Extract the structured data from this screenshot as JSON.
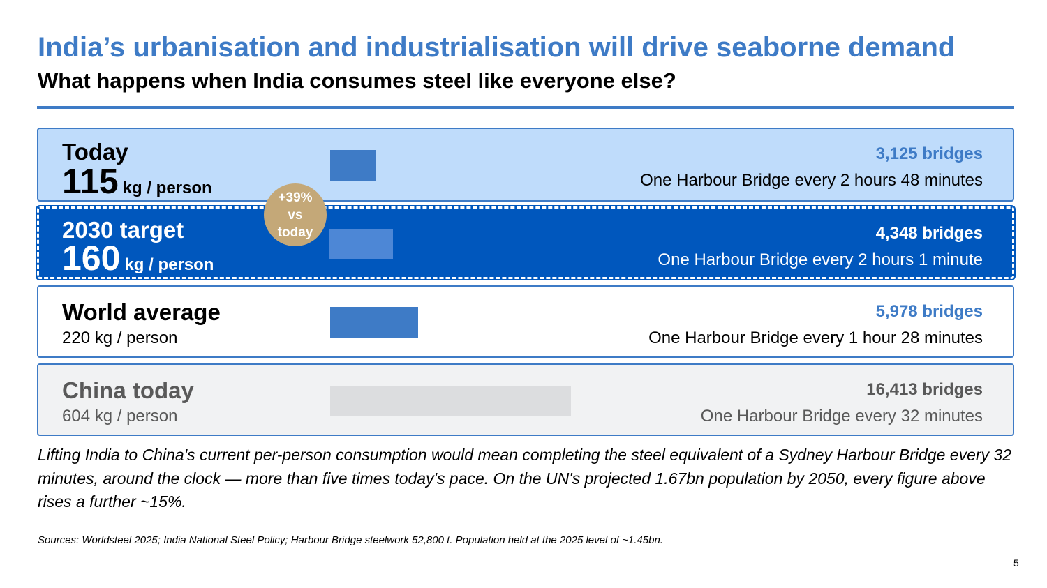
{
  "header": {
    "title": "India’s urbanisation and industrialisation will drive seaborne demand",
    "subtitle": "What happens when India consumes steel like everyone else?"
  },
  "rows": [
    {
      "label": "Today",
      "value": "115",
      "unit": "kg / person",
      "kg_per_person": 115,
      "bridges": "3,125 bridges",
      "rate": "One Harbour Bridge every 2 hours 48 minutes"
    },
    {
      "label": "2030 target",
      "value": "160",
      "unit": "kg / person",
      "kg_per_person": 160,
      "bridges": "4,348 bridges",
      "rate": "One Harbour Bridge every 2 hours 1 minute"
    },
    {
      "label": "World average",
      "value_text": "220 kg / person",
      "kg_per_person": 220,
      "bridges": "5,978 bridges",
      "rate": "One Harbour Bridge every 1 hour 28 minutes"
    },
    {
      "label": "China today",
      "value_text": "604 kg / person",
      "kg_per_person": 604,
      "bridges": "16,413 bridges",
      "rate": "One Harbour Bridge every 32 minutes"
    }
  ],
  "badge": {
    "line1": "+39%",
    "line2": "vs",
    "line3": "today"
  },
  "note": "Lifting India to China's current per-person consumption would mean completing the steel equivalent of a Sydney Harbour Bridge every 32 minutes, around the clock — more than five times today's pace. On the UN's projected 1.67bn population by 2050, every figure above rises a further ~15%.",
  "sources": "Sources: Worldsteel 2025; India National Steel Policy; Harbour Bridge steelwork 52,800 t. Population held at the 2025 level of ~1.45bn.",
  "page_number": "5",
  "colors": {
    "accent": "#3e7bc6",
    "target_fill": "#0057bd",
    "badge": "#c4a878",
    "china_fill": "#f1f2f3"
  }
}
